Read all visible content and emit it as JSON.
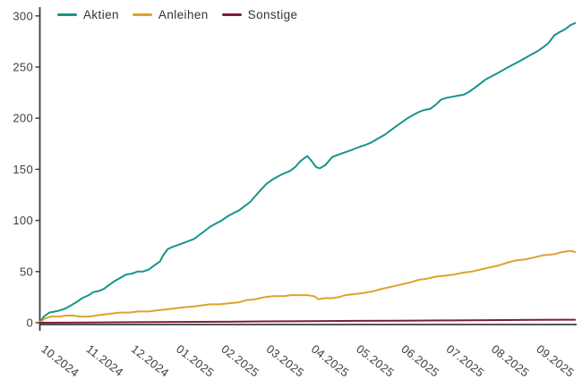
{
  "chart_data": {
    "type": "line",
    "title": "",
    "xlabel": "",
    "ylabel": "",
    "ylim": [
      0,
      300
    ],
    "y_ticks": [
      0,
      50,
      100,
      150,
      200,
      250,
      300
    ],
    "x_tick_labels": [
      "10.2024",
      "11.2024",
      "12.2024",
      "01.2025",
      "02.2025",
      "03.2025",
      "04.2025",
      "05.2025",
      "06.2025",
      "07.2025",
      "08.2025",
      "09.2025"
    ],
    "grid": false,
    "legend_position": "top-left",
    "axis_color": "#3c3c3c",
    "text_color": "#3f3f3f",
    "background_color": "#ffffff",
    "x_unit": "months since 10.2024",
    "series": [
      {
        "name": "Aktien",
        "color": "#17948c",
        "points": [
          [
            0,
            0
          ],
          [
            0.1,
            6
          ],
          [
            0.22,
            10
          ],
          [
            0.35,
            11
          ],
          [
            0.45,
            12
          ],
          [
            0.58,
            14
          ],
          [
            0.7,
            17
          ],
          [
            0.82,
            20
          ],
          [
            0.95,
            24
          ],
          [
            1.1,
            27
          ],
          [
            1.2,
            30
          ],
          [
            1.32,
            31
          ],
          [
            1.43,
            33
          ],
          [
            1.55,
            37
          ],
          [
            1.68,
            41
          ],
          [
            1.8,
            44
          ],
          [
            1.92,
            47
          ],
          [
            2.05,
            48
          ],
          [
            2.18,
            50
          ],
          [
            2.3,
            50
          ],
          [
            2.43,
            52
          ],
          [
            2.55,
            56
          ],
          [
            2.68,
            60
          ],
          [
            2.75,
            66
          ],
          [
            2.85,
            72
          ],
          [
            2.95,
            74
          ],
          [
            3.08,
            76
          ],
          [
            3.2,
            78
          ],
          [
            3.32,
            80
          ],
          [
            3.44,
            82
          ],
          [
            3.56,
            86
          ],
          [
            3.68,
            90
          ],
          [
            3.8,
            94
          ],
          [
            3.92,
            97
          ],
          [
            4.05,
            100
          ],
          [
            4.18,
            104
          ],
          [
            4.3,
            107
          ],
          [
            4.44,
            110
          ],
          [
            4.56,
            114
          ],
          [
            4.68,
            118
          ],
          [
            4.8,
            124
          ],
          [
            4.92,
            130
          ],
          [
            5.05,
            136
          ],
          [
            5.18,
            140
          ],
          [
            5.3,
            143
          ],
          [
            5.43,
            146
          ],
          [
            5.55,
            148
          ],
          [
            5.68,
            152
          ],
          [
            5.8,
            158
          ],
          [
            5.95,
            163
          ],
          [
            6.05,
            158
          ],
          [
            6.15,
            152
          ],
          [
            6.23,
            151
          ],
          [
            6.35,
            154
          ],
          [
            6.43,
            158
          ],
          [
            6.5,
            162
          ],
          [
            6.62,
            164
          ],
          [
            6.75,
            166
          ],
          [
            6.88,
            168
          ],
          [
            7,
            170
          ],
          [
            7.12,
            172
          ],
          [
            7.25,
            174
          ],
          [
            7.36,
            176
          ],
          [
            7.44,
            178
          ],
          [
            7.56,
            181
          ],
          [
            7.68,
            184
          ],
          [
            7.8,
            188
          ],
          [
            7.92,
            192
          ],
          [
            8.05,
            196
          ],
          [
            8.18,
            200
          ],
          [
            8.3,
            203
          ],
          [
            8.43,
            206
          ],
          [
            8.55,
            208
          ],
          [
            8.68,
            209
          ],
          [
            8.8,
            213
          ],
          [
            8.92,
            218
          ],
          [
            9.05,
            220
          ],
          [
            9.18,
            221
          ],
          [
            9.3,
            222
          ],
          [
            9.43,
            223
          ],
          [
            9.55,
            226
          ],
          [
            9.68,
            230
          ],
          [
            9.8,
            234
          ],
          [
            9.92,
            238
          ],
          [
            10.05,
            241
          ],
          [
            10.18,
            244
          ],
          [
            10.3,
            247
          ],
          [
            10.42,
            250
          ],
          [
            10.55,
            253
          ],
          [
            10.68,
            256
          ],
          [
            10.8,
            259
          ],
          [
            10.92,
            262
          ],
          [
            11.05,
            265
          ],
          [
            11.18,
            269
          ],
          [
            11.3,
            273
          ],
          [
            11.44,
            281
          ],
          [
            11.55,
            284
          ],
          [
            11.68,
            287
          ],
          [
            11.8,
            291
          ],
          [
            11.9,
            293
          ]
        ]
      },
      {
        "name": "Anleihen",
        "color": "#dda32f",
        "points": [
          [
            0,
            0
          ],
          [
            0.12,
            4
          ],
          [
            0.25,
            6
          ],
          [
            0.44,
            6
          ],
          [
            0.6,
            7
          ],
          [
            0.75,
            7
          ],
          [
            0.9,
            6
          ],
          [
            1.1,
            6
          ],
          [
            1.25,
            7
          ],
          [
            1.43,
            8
          ],
          [
            1.6,
            9
          ],
          [
            1.8,
            10
          ],
          [
            2,
            10
          ],
          [
            2.2,
            11
          ],
          [
            2.43,
            11
          ],
          [
            2.6,
            12
          ],
          [
            2.8,
            13
          ],
          [
            3,
            14
          ],
          [
            3.2,
            15
          ],
          [
            3.44,
            16
          ],
          [
            3.6,
            17
          ],
          [
            3.8,
            18
          ],
          [
            4,
            18
          ],
          [
            4.2,
            19
          ],
          [
            4.44,
            20
          ],
          [
            4.6,
            22
          ],
          [
            4.8,
            23
          ],
          [
            5,
            25
          ],
          [
            5.2,
            26
          ],
          [
            5.43,
            26
          ],
          [
            5.6,
            27
          ],
          [
            5.8,
            27
          ],
          [
            5.95,
            27
          ],
          [
            6.1,
            26
          ],
          [
            6.2,
            23
          ],
          [
            6.35,
            24
          ],
          [
            6.5,
            24
          ],
          [
            6.65,
            25
          ],
          [
            6.8,
            27
          ],
          [
            7,
            28
          ],
          [
            7.2,
            29
          ],
          [
            7.44,
            31
          ],
          [
            7.6,
            33
          ],
          [
            7.8,
            35
          ],
          [
            8,
            37
          ],
          [
            8.2,
            39
          ],
          [
            8.43,
            42
          ],
          [
            8.6,
            43
          ],
          [
            8.8,
            45
          ],
          [
            9,
            46
          ],
          [
            9.2,
            47
          ],
          [
            9.43,
            49
          ],
          [
            9.6,
            50
          ],
          [
            9.8,
            52
          ],
          [
            10,
            54
          ],
          [
            10.2,
            56
          ],
          [
            10.42,
            59
          ],
          [
            10.6,
            61
          ],
          [
            10.8,
            62
          ],
          [
            11,
            64
          ],
          [
            11.2,
            66
          ],
          [
            11.44,
            67
          ],
          [
            11.6,
            69
          ],
          [
            11.75,
            70
          ],
          [
            11.85,
            70
          ],
          [
            11.9,
            69
          ]
        ]
      },
      {
        "name": "Sonstige",
        "color": "#801a3e",
        "points": [
          [
            0,
            0
          ],
          [
            1,
            0.2
          ],
          [
            2,
            0.5
          ],
          [
            3,
            0.8
          ],
          [
            4,
            1
          ],
          [
            5,
            1.3
          ],
          [
            6,
            1.5
          ],
          [
            7,
            1.8
          ],
          [
            8,
            2
          ],
          [
            9,
            2.3
          ],
          [
            10,
            2.5
          ],
          [
            11,
            2.8
          ],
          [
            11.9,
            3
          ]
        ]
      }
    ]
  }
}
